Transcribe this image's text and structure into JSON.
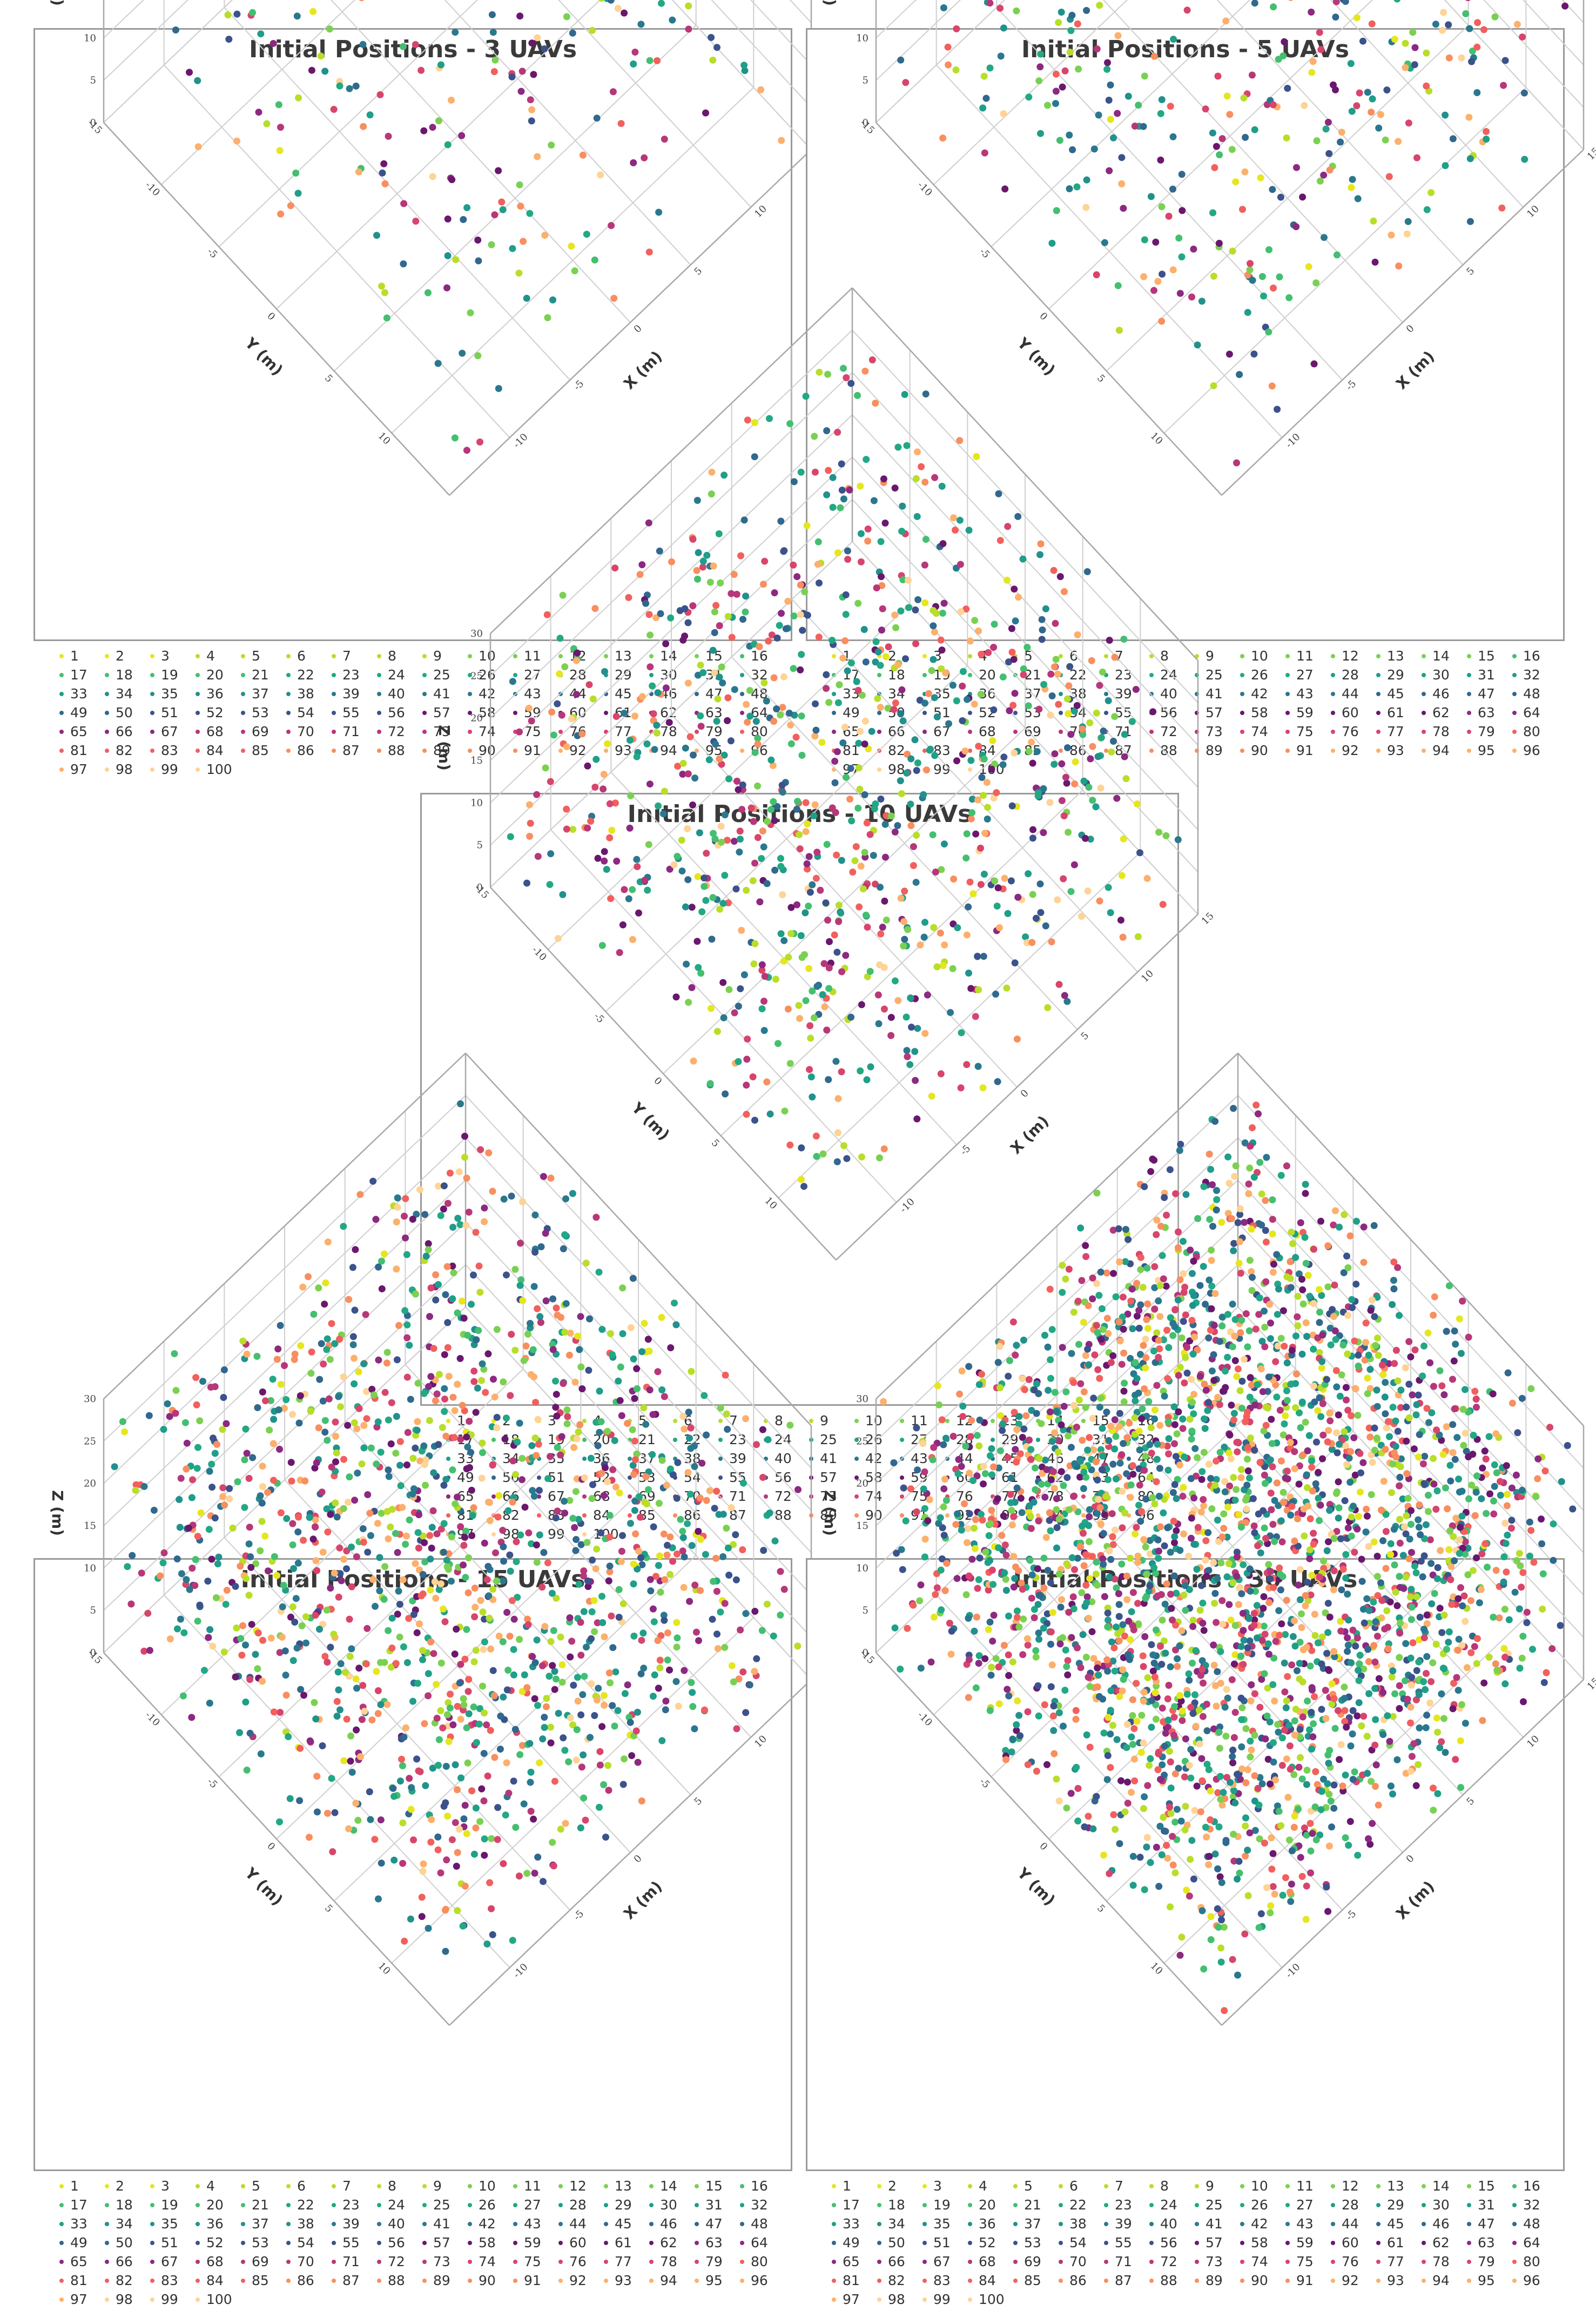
{
  "palette": [
    "#e6e61e",
    "#b8de29",
    "#7ad151",
    "#44bf70",
    "#22a884",
    "#1f9e89",
    "#21918c",
    "#2a788e",
    "#31688e",
    "#3b528b",
    "#6a176e",
    "#8c2981",
    "#b73779",
    "#d8456c",
    "#f1605d",
    "#f98e5e",
    "#fcb06b",
    "#fed395"
  ],
  "legend_labels": [
    "1",
    "2",
    "3",
    "4",
    "5",
    "6",
    "7",
    "8",
    "9",
    "10",
    "11",
    "12",
    "13",
    "14",
    "15",
    "16",
    "17",
    "18",
    "19",
    "20",
    "21",
    "22",
    "23",
    "24",
    "25",
    "26",
    "27",
    "28",
    "29",
    "30",
    "31",
    "32",
    "33",
    "34",
    "35",
    "36",
    "37",
    "38",
    "39",
    "40",
    "41",
    "42",
    "43",
    "44",
    "45",
    "46",
    "47",
    "48",
    "49",
    "50",
    "51",
    "52",
    "53",
    "54",
    "55",
    "56",
    "57",
    "58",
    "59",
    "60",
    "61",
    "62",
    "63",
    "64",
    "65",
    "66",
    "67",
    "68",
    "69",
    "70",
    "71",
    "72",
    "73",
    "74",
    "75",
    "76",
    "77",
    "78",
    "79",
    "80",
    "81",
    "82",
    "83",
    "84",
    "85",
    "86",
    "87",
    "88",
    "89",
    "90",
    "91",
    "92",
    "93",
    "94",
    "95",
    "96",
    "97",
    "98",
    "99",
    "100"
  ],
  "axes": {
    "xlabel": "X (m)",
    "ylabel": "Y (m)",
    "zlabel": "Z (m)",
    "x_ticks": [
      "15",
      "10",
      "5",
      "0",
      "-5",
      "-10"
    ],
    "y_ticks": [
      "-15",
      "-10",
      "-5",
      "0",
      "5",
      "10"
    ],
    "z_ticks": [
      "0",
      "5",
      "10",
      "15",
      "20",
      "25",
      "30"
    ],
    "xlim": [
      -15,
      15
    ],
    "ylim": [
      -15,
      15
    ],
    "zlim": [
      0,
      30
    ],
    "grid": true,
    "legend_placement": "bottom"
  },
  "panels": [
    {
      "title": "Initial Positions - 3 UAVs",
      "uavs": 3
    },
    {
      "title": "Initial Positions - 5 UAVs",
      "uavs": 5
    },
    {
      "title": "Initial Positions - 10 UAVs",
      "uavs": 10
    },
    {
      "title": "Initial Positions - 15 UAVs",
      "uavs": 15
    },
    {
      "title": "Initial Positions - 30 UAVs",
      "uavs": 30
    }
  ],
  "chart_data": [
    {
      "type": "scatter",
      "title": "Initial Positions - 3 UAVs",
      "xlabel": "X (m)",
      "ylabel": "Y (m)",
      "zlabel": "Z (m)",
      "xlim": [
        -15,
        15
      ],
      "ylim": [
        -15,
        15
      ],
      "zlim": [
        0,
        30
      ],
      "series_count": 100,
      "points_per_series": 3,
      "series_names": "1-100",
      "data_note": "random uniform positions; individual values not legible"
    },
    {
      "type": "scatter",
      "title": "Initial Positions - 5 UAVs",
      "xlabel": "X (m)",
      "ylabel": "Y (m)",
      "zlabel": "Z (m)",
      "xlim": [
        -15,
        15
      ],
      "ylim": [
        -15,
        15
      ],
      "zlim": [
        0,
        30
      ],
      "series_count": 100,
      "points_per_series": 5
    },
    {
      "type": "scatter",
      "title": "Initial Positions - 10 UAVs",
      "xlabel": "X (m)",
      "ylabel": "Y (m)",
      "zlabel": "Z (m)",
      "xlim": [
        -15,
        15
      ],
      "ylim": [
        -15,
        15
      ],
      "zlim": [
        0,
        30
      ],
      "series_count": 100,
      "points_per_series": 10
    },
    {
      "type": "scatter",
      "title": "Initial Positions - 15 UAVs",
      "xlabel": "X (m)",
      "ylabel": "Y (m)",
      "zlabel": "Z (m)",
      "xlim": [
        -15,
        15
      ],
      "ylim": [
        -15,
        15
      ],
      "zlim": [
        0,
        30
      ],
      "series_count": 100,
      "points_per_series": 15
    },
    {
      "type": "scatter",
      "title": "Initial Positions - 30 UAVs",
      "xlabel": "X (m)",
      "ylabel": "Y (m)",
      "zlabel": "Z (m)",
      "xlim": [
        -15,
        15
      ],
      "ylim": [
        -15,
        15
      ],
      "zlim": [
        0,
        30
      ],
      "series_count": 100,
      "points_per_series": 30
    }
  ]
}
